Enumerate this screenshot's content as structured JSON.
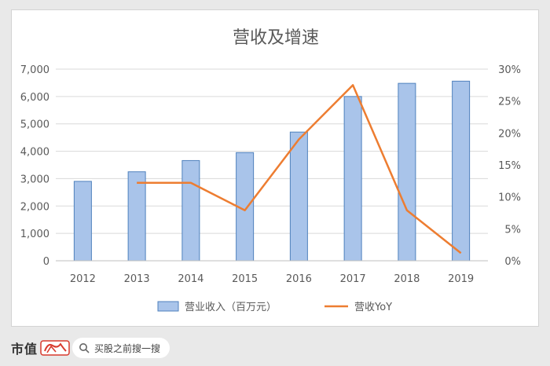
{
  "chart_data": {
    "type": "bar+line",
    "title": "营收及增速",
    "categories": [
      "2012",
      "2013",
      "2014",
      "2015",
      "2016",
      "2017",
      "2018",
      "2019"
    ],
    "series": [
      {
        "name": "营业收入（百万元）",
        "type": "bar",
        "axis": "left",
        "values": [
          2900,
          3250,
          3660,
          3950,
          4700,
          6000,
          6480,
          6560
        ]
      },
      {
        "name": "营收YoY",
        "type": "line",
        "axis": "right",
        "values": [
          null,
          12.2,
          12.2,
          7.9,
          19.0,
          27.5,
          7.9,
          1.2
        ]
      }
    ],
    "y_left": {
      "min": 0,
      "max": 7000,
      "ticks": [
        "0",
        "1,000",
        "2,000",
        "3,000",
        "4,000",
        "5,000",
        "6,000",
        "7,000"
      ]
    },
    "y_right": {
      "min": 0,
      "max": 30,
      "ticks": [
        "0%",
        "5%",
        "10%",
        "15%",
        "20%",
        "25%",
        "30%"
      ]
    },
    "grid": true,
    "legend_position": "bottom",
    "colors": {
      "bar_fill": "#a9c4ea",
      "bar_stroke": "#4f81bd",
      "line": "#ed7d31",
      "grid": "#d9d9d9",
      "text": "#595959"
    }
  },
  "footer": {
    "brand": "市值",
    "search_text": "买股之前搜一搜",
    "icon": "search-icon",
    "logo": "brand-logo-icon"
  }
}
